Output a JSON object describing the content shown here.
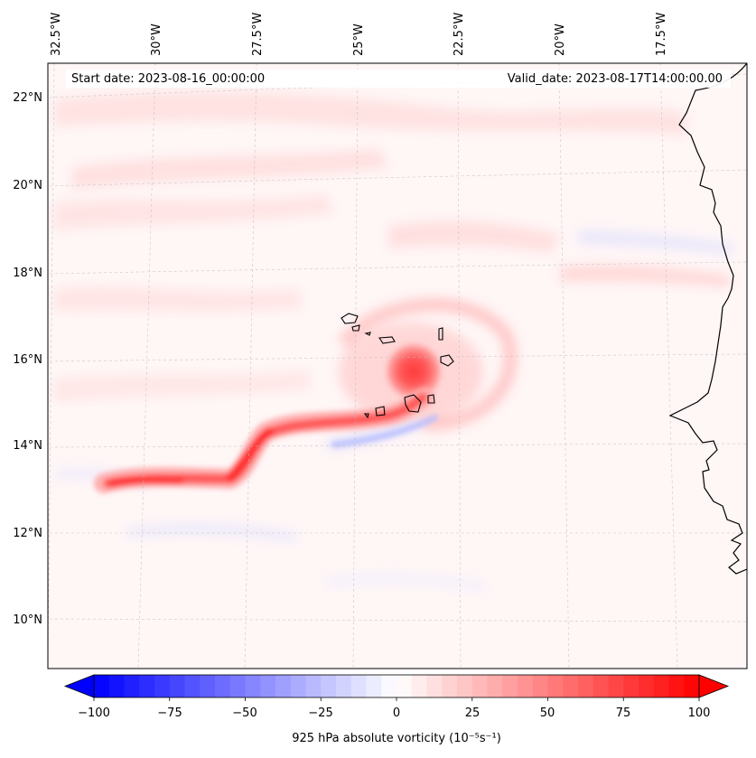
{
  "header": {
    "start_date": "Start date: 2023-08-16_00:00:00",
    "valid_date": "Valid_date: 2023-08-17T14:00:00.00"
  },
  "axes": {
    "longitude_labels": [
      "32.5°W",
      "30°W",
      "27.5°W",
      "25°W",
      "22.5°W",
      "20°W",
      "17.5°W"
    ],
    "latitude_labels": [
      "22°N",
      "20°N",
      "18°N",
      "16°N",
      "14°N",
      "12°N",
      "10°N"
    ]
  },
  "colorbar": {
    "ticks": [
      "−100",
      "−75",
      "−50",
      "−25",
      "0",
      "25",
      "50",
      "75",
      "100"
    ],
    "label": "925 hPa absolute vorticity (10⁻⁵s⁻¹)",
    "min": -100,
    "max": 100,
    "levels": 41,
    "cmap": "bwr"
  },
  "colors": {
    "negative": "#0000ff",
    "neutral": "#ffffff",
    "positive": "#ff0000",
    "coastline": "#000000"
  }
}
